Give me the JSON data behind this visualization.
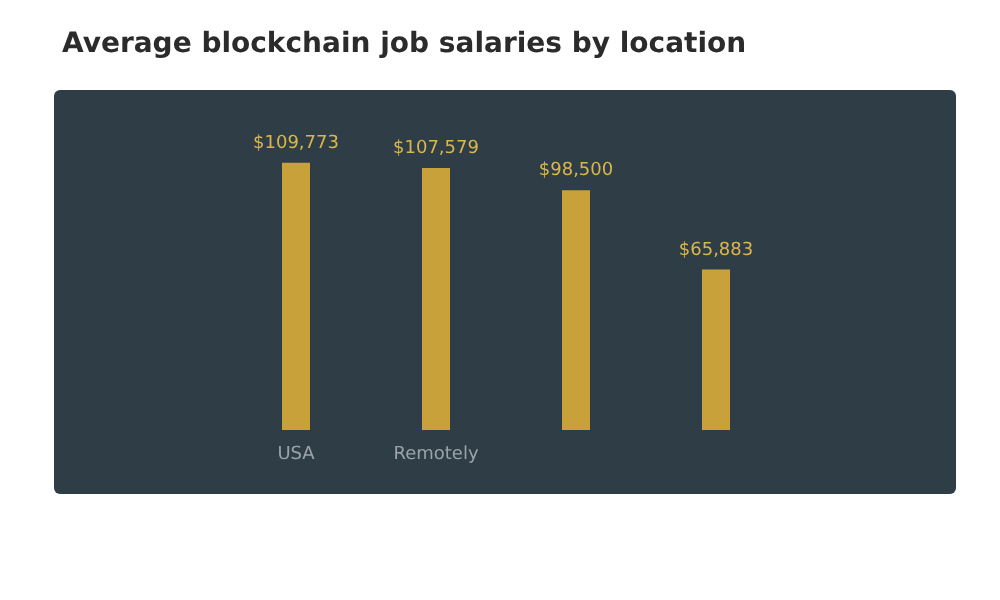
{
  "chart_data": {
    "type": "bar",
    "title": "Average blockchain job salaries by location",
    "categories": [
      "USA",
      "Remotely",
      null,
      null
    ],
    "values": [
      109773,
      107579,
      98500,
      65883
    ],
    "value_labels": [
      "$109,773",
      "$107,579",
      "$98,500",
      "$65,883"
    ],
    "color": "#c9a13a"
  }
}
